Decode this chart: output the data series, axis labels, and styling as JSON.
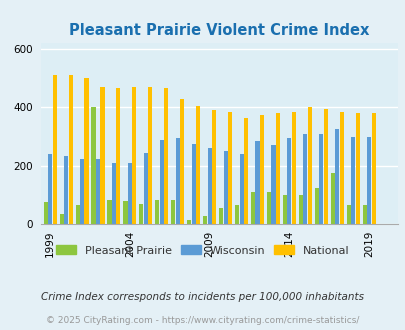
{
  "title": "Pleasant Prairie Violent Crime Index",
  "title_color": "#1a6faf",
  "years": [
    1999,
    2000,
    2001,
    2002,
    2003,
    2004,
    2005,
    2006,
    2007,
    2008,
    2009,
    2010,
    2011,
    2012,
    2013,
    2014,
    2015,
    2016,
    2017,
    2018,
    2019,
    2020
  ],
  "pleasant_prairie": [
    75,
    35,
    65,
    400,
    85,
    80,
    70,
    85,
    85,
    15,
    30,
    55,
    65,
    110,
    110,
    100,
    100,
    125,
    175,
    65,
    65,
    null
  ],
  "wisconsin": [
    240,
    235,
    225,
    225,
    210,
    210,
    245,
    290,
    295,
    275,
    260,
    250,
    240,
    285,
    270,
    295,
    310,
    310,
    325,
    300,
    300,
    null
  ],
  "national": [
    510,
    510,
    500,
    470,
    465,
    470,
    470,
    465,
    430,
    405,
    390,
    385,
    365,
    375,
    380,
    385,
    400,
    395,
    385,
    380,
    380,
    null
  ],
  "ylim": [
    0,
    620
  ],
  "yticks": [
    0,
    200,
    400,
    600
  ],
  "xtick_years": [
    1999,
    2004,
    2009,
    2014,
    2019
  ],
  "color_pp": "#8dc63f",
  "color_wi": "#5b9bd5",
  "color_na": "#ffc000",
  "bg_color": "#e4f0f6",
  "plot_bg": "#ddeef5",
  "legend_labels": [
    "Pleasant Prairie",
    "Wisconsin",
    "National"
  ],
  "footnote": "Crime Index corresponds to incidents per 100,000 inhabitants",
  "copyright": "© 2025 CityRating.com - https://www.cityrating.com/crime-statistics/",
  "footnote_color": "#333333",
  "copyright_color": "#999999"
}
